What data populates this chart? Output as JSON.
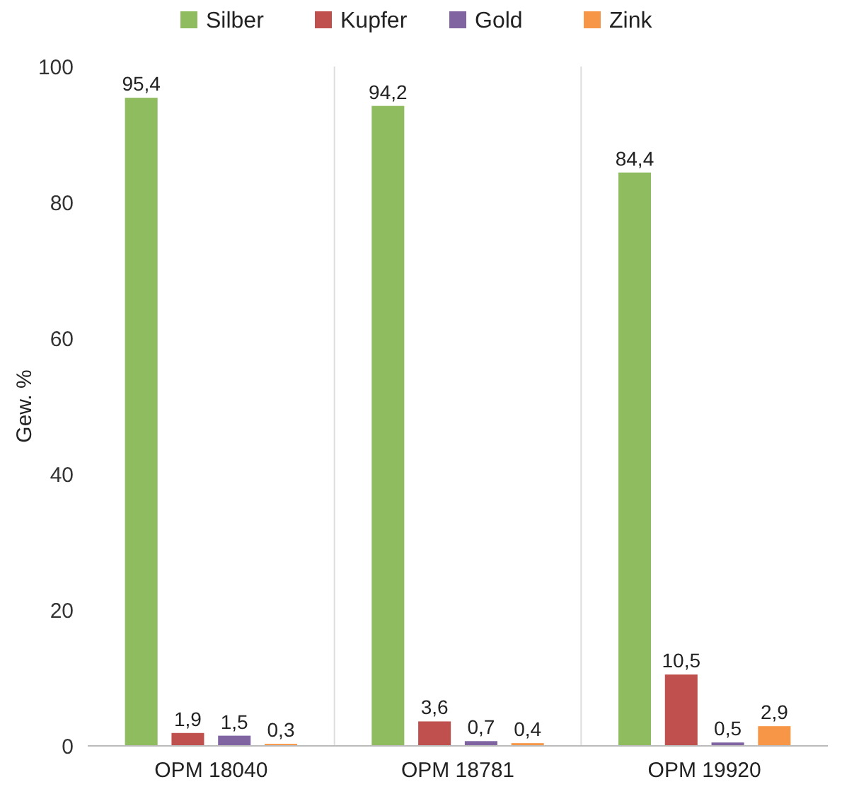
{
  "chart_data": {
    "type": "bar",
    "ylabel": "Gew. %",
    "categories": [
      "OPM 18040",
      "OPM 18781",
      "OPM 19920"
    ],
    "series": [
      {
        "name": "Silber",
        "color": "#8fbc5f",
        "values": [
          95.4,
          94.2,
          84.4
        ],
        "value_labels": [
          "95,4",
          "94,2",
          "84,4"
        ]
      },
      {
        "name": "Kupfer",
        "color": "#c0504d",
        "values": [
          1.9,
          3.6,
          10.5
        ],
        "value_labels": [
          "1,9",
          "3,6",
          "10,5"
        ]
      },
      {
        "name": "Gold",
        "color": "#8064a2",
        "values": [
          1.5,
          0.7,
          0.5
        ],
        "value_labels": [
          "1,5",
          "0,7",
          "0,5"
        ]
      },
      {
        "name": "Zink",
        "color": "#f79646",
        "values": [
          0.3,
          0.4,
          2.9
        ],
        "value_labels": [
          "0,3",
          "0,4",
          "2,9"
        ]
      }
    ],
    "ylim": [
      0,
      100
    ],
    "yticks": [
      0,
      20,
      40,
      60,
      80,
      100
    ],
    "grid": "x",
    "legend": "top"
  }
}
